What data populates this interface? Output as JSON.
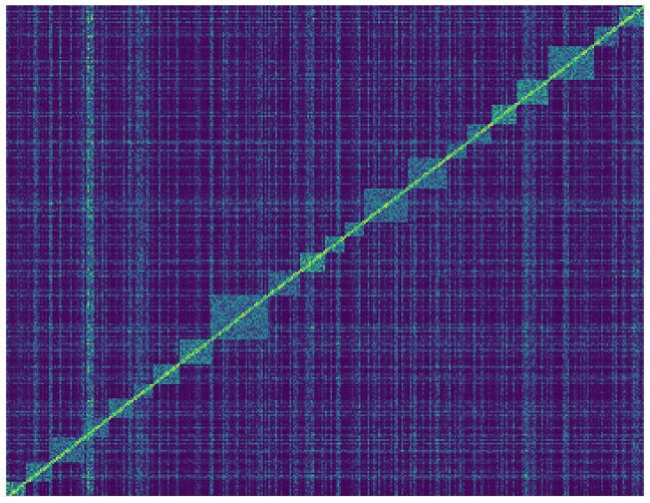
{
  "chart_data": {
    "type": "heatmap",
    "title": "",
    "xlabel": "",
    "ylabel": "",
    "ticks_visible": false,
    "colorbar_visible": false,
    "colormap": "viridis",
    "colors": {
      "low": "#440154",
      "mid_low": "#3b528b",
      "mid": "#21918c",
      "mid_high": "#5ec962",
      "high": "#fde725",
      "background": "#ffffff",
      "frame": "#e4e4ec"
    },
    "value_range": [
      0,
      1
    ],
    "grid_size": [
      360,
      276
    ],
    "diagonal_blocks": [
      {
        "start": 0.0,
        "end": 0.03,
        "intensity": 0.55
      },
      {
        "start": 0.03,
        "end": 0.07,
        "intensity": 0.45
      },
      {
        "start": 0.07,
        "end": 0.12,
        "intensity": 0.4
      },
      {
        "start": 0.12,
        "end": 0.16,
        "intensity": 0.38
      },
      {
        "start": 0.16,
        "end": 0.2,
        "intensity": 0.42
      },
      {
        "start": 0.2,
        "end": 0.23,
        "intensity": 0.4
      },
      {
        "start": 0.23,
        "end": 0.27,
        "intensity": 0.45
      },
      {
        "start": 0.27,
        "end": 0.32,
        "intensity": 0.48
      },
      {
        "start": 0.32,
        "end": 0.41,
        "intensity": 0.42
      },
      {
        "start": 0.41,
        "end": 0.46,
        "intensity": 0.38
      },
      {
        "start": 0.46,
        "end": 0.5,
        "intensity": 0.55
      },
      {
        "start": 0.5,
        "end": 0.53,
        "intensity": 0.5
      },
      {
        "start": 0.53,
        "end": 0.56,
        "intensity": 0.45
      },
      {
        "start": 0.56,
        "end": 0.63,
        "intensity": 0.4
      },
      {
        "start": 0.63,
        "end": 0.69,
        "intensity": 0.42
      },
      {
        "start": 0.69,
        "end": 0.72,
        "intensity": 0.38
      },
      {
        "start": 0.72,
        "end": 0.76,
        "intensity": 0.4
      },
      {
        "start": 0.76,
        "end": 0.8,
        "intensity": 0.55
      },
      {
        "start": 0.8,
        "end": 0.85,
        "intensity": 0.5
      },
      {
        "start": 0.85,
        "end": 0.92,
        "intensity": 0.45
      },
      {
        "start": 0.92,
        "end": 0.96,
        "intensity": 0.4
      },
      {
        "start": 0.96,
        "end": 1.0,
        "intensity": 0.48
      }
    ],
    "bright_columns": [
      {
        "pos": 0.13,
        "intensity": 0.62
      },
      {
        "pos": 0.135,
        "intensity": 0.55
      },
      {
        "pos": 0.045,
        "intensity": 0.35
      },
      {
        "pos": 0.52,
        "intensity": 0.35
      },
      {
        "pos": 0.675,
        "intensity": 0.3
      },
      {
        "pos": 0.985,
        "intensity": 0.3
      }
    ],
    "bright_rows": [
      {
        "pos": 0.115,
        "intensity": 0.25
      },
      {
        "pos": 0.28,
        "intensity": 0.25
      },
      {
        "pos": 0.52,
        "intensity": 0.3
      },
      {
        "pos": 0.62,
        "intensity": 0.2
      }
    ]
  }
}
